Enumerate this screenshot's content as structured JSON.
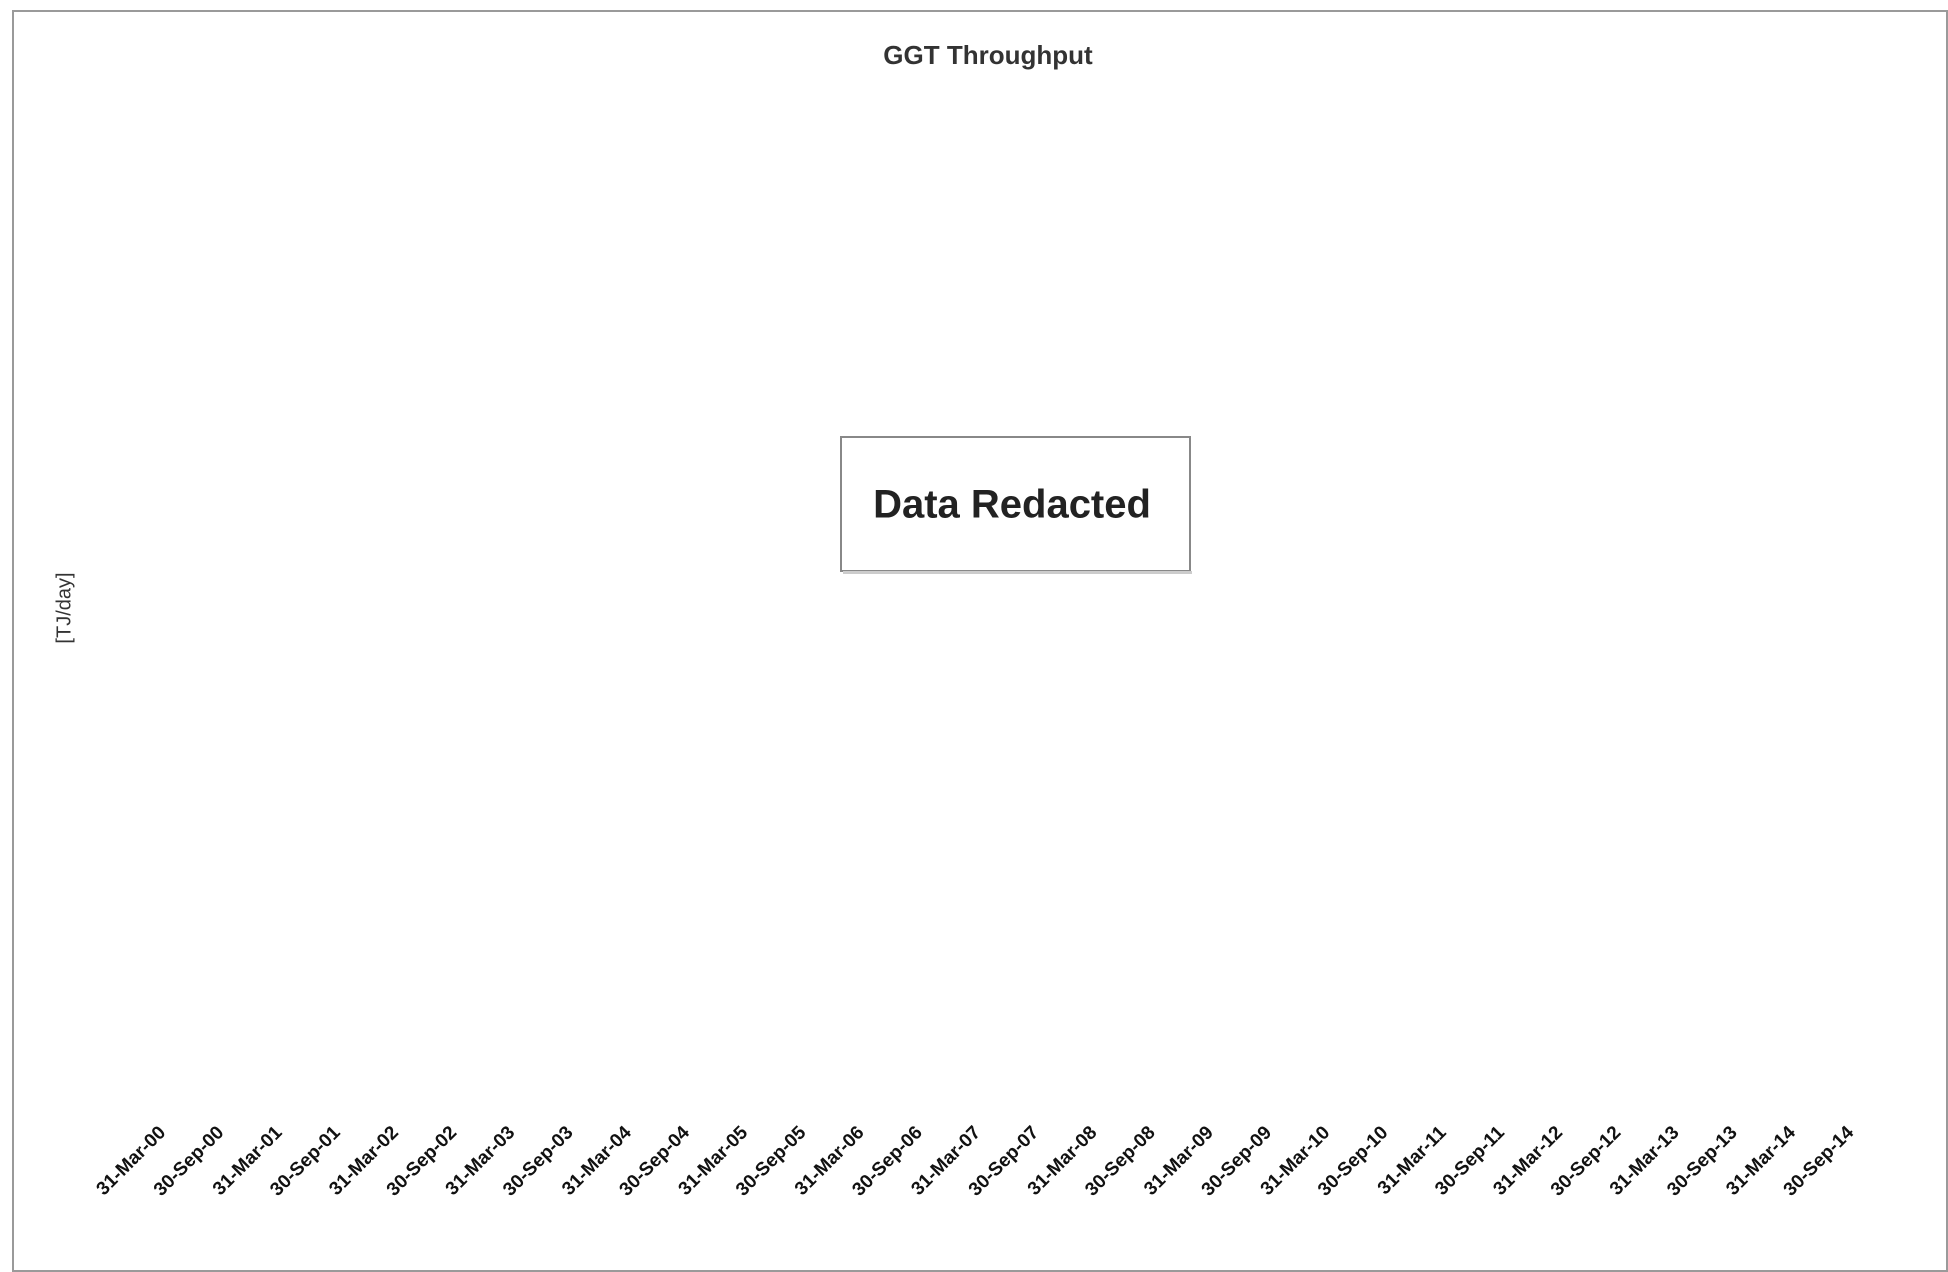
{
  "chart_data": {
    "type": "line",
    "title": "GGT Throughput",
    "y_label": "[TJ/day]",
    "annotation": "Data Redacted",
    "categories": [
      "31-Mar-00",
      "30-Sep-00",
      "31-Mar-01",
      "30-Sep-01",
      "31-Mar-02",
      "30-Sep-02",
      "31-Mar-03",
      "30-Sep-03",
      "31-Mar-04",
      "30-Sep-04",
      "31-Mar-05",
      "30-Sep-05",
      "31-Mar-06",
      "30-Sep-06",
      "31-Mar-07",
      "30-Sep-07",
      "31-Mar-08",
      "30-Sep-08",
      "31-Mar-09",
      "30-Sep-09",
      "31-Mar-10",
      "30-Sep-10",
      "31-Mar-11",
      "30-Sep-11",
      "31-Mar-12",
      "30-Sep-12",
      "31-Mar-13",
      "30-Sep-13",
      "31-Mar-14",
      "30-Sep-14"
    ]
  }
}
